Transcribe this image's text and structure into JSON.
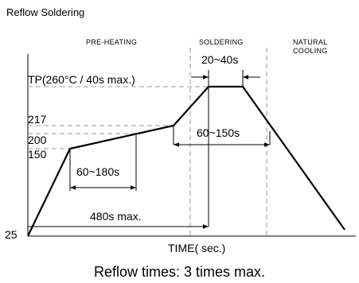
{
  "title": "Reflow Soldering",
  "phases": {
    "preheating": "PRE-HEATING",
    "soldering": "SOLDERING",
    "cooling_line1": "NATURAL",
    "cooling_line2": "COOLING"
  },
  "y_labels": {
    "peak": "TP(260°C / 40s max.)",
    "t217": "217",
    "t200": "200",
    "t150": "150",
    "t25": "25"
  },
  "durations": {
    "peak_time": "20~40s",
    "above_217": "60~150s",
    "preheat": "60~180s",
    "total": "480s max."
  },
  "x_axis_label": "TIME( sec.)",
  "caption": "Reflow times: 3 times max.",
  "colors": {
    "line": "#000000",
    "guide": "#9a9a9a"
  }
}
